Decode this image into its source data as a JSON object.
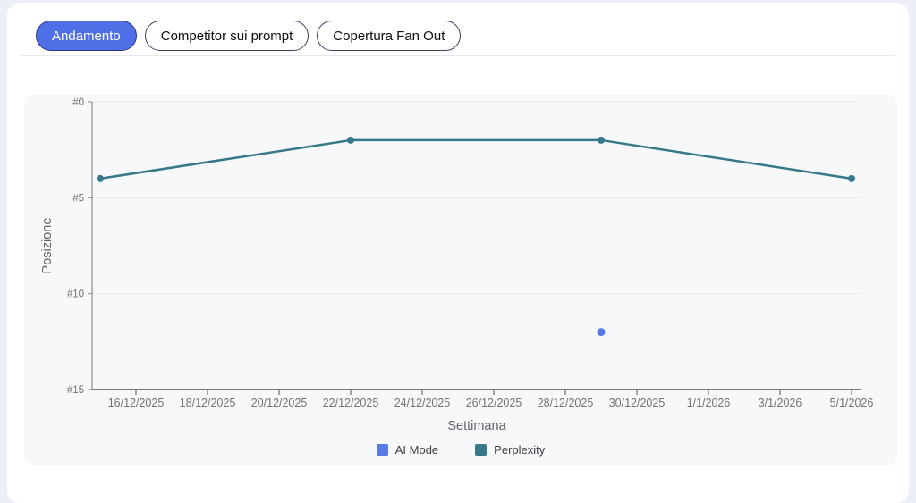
{
  "tabs": [
    {
      "label": "Andamento",
      "active": true
    },
    {
      "label": "Competitor sui prompt",
      "active": false
    },
    {
      "label": "Copertura Fan Out",
      "active": false
    }
  ],
  "colors": {
    "page-bg": "#edeff6",
    "card-bg": "#ffffff",
    "panel-bg": "#f7f8fa",
    "divider": "#e7e8ec",
    "accent": "#4f6fe6",
    "accent-border": "#29367d",
    "tab-border": "#39415c",
    "grid": "#e8eaed",
    "y-axis": "#8c8c8c",
    "x-axis": "#4f4f4f",
    "tick-label": "#737373",
    "axis-title": "#5f6368"
  },
  "chart_data": {
    "type": "line",
    "title": "",
    "xlabel": "Settimana",
    "ylabel": "Posizione",
    "y_axis": {
      "ylim": [
        0,
        15
      ],
      "reversed": true,
      "ticks": [
        0,
        5,
        10,
        15
      ],
      "tick_labels": [
        "#0",
        "#5",
        "#10",
        "#15"
      ]
    },
    "x_ticks": [
      "16/12/2025",
      "18/12/2025",
      "20/12/2025",
      "22/12/2025",
      "24/12/2025",
      "26/12/2025",
      "28/12/2025",
      "30/12/2025",
      "1/1/2026",
      "3/1/2026",
      "5/1/2026"
    ],
    "grid": true,
    "legend_position": "bottom",
    "series": [
      {
        "name": "AI Mode",
        "color": "#567ae6",
        "points": [
          {
            "x": "29/12/2025",
            "y": 12
          }
        ]
      },
      {
        "name": "Perplexity",
        "color": "#37798a",
        "points": [
          {
            "x": "15/12/2025",
            "y": 4
          },
          {
            "x": "22/12/2025",
            "y": 2
          },
          {
            "x": "29/12/2025",
            "y": 2
          },
          {
            "x": "5/1/2026",
            "y": 4
          }
        ]
      }
    ]
  }
}
